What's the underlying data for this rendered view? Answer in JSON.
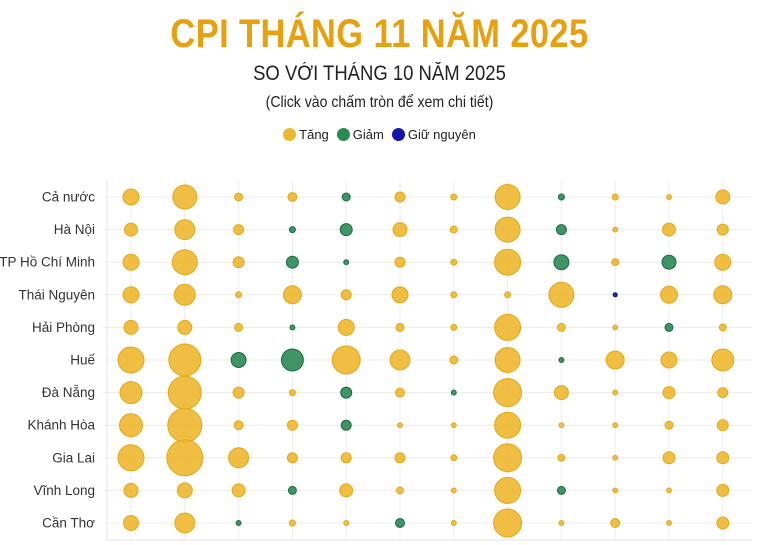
{
  "title": "CPI THÁNG 11 NĂM 2025",
  "subtitle": "SO VỚI THÁNG 10 NĂM 2025",
  "hint": "(Click vào chấm tròn để xem chi tiết)",
  "legend": [
    {
      "label": "Tăng",
      "color": "#EDB72E"
    },
    {
      "label": "Giảm",
      "color": "#2A8A55"
    },
    {
      "label": "Giữ nguyên",
      "color": "#1515A8"
    }
  ],
  "chart_data": {
    "type": "scatter",
    "note_encoding": "bubble area proportional to magnitude (relative, unlabeled); color by status",
    "grid": true,
    "rows": [
      "Cả nước",
      "Hà Nội",
      "TP Hồ Chí Minh",
      "Thái Nguyên",
      "Hải Phòng",
      "Huế",
      "Đà Nẵng",
      "Khánh Hòa",
      "Gia Lai",
      "Vĩnh Long",
      "Cần Thơ"
    ],
    "column_count": 12,
    "status_colors": {
      "u": "#EDB72E",
      "d": "#2A8A55",
      "f": "#1515A8"
    },
    "magnitude": [
      [
        0.64,
        1.44,
        0.16,
        0.2,
        0.16,
        0.25,
        0.09,
        1.56,
        0.09,
        0.09,
        0.06,
        0.49
      ],
      [
        0.42,
        1.0,
        0.25,
        0.09,
        0.36,
        0.49,
        0.12,
        1.56,
        0.25,
        0.06,
        0.42,
        0.3
      ],
      [
        0.64,
        1.56,
        0.3,
        0.36,
        0.06,
        0.25,
        0.09,
        1.69,
        0.56,
        0.12,
        0.49,
        0.64
      ],
      [
        0.64,
        1.1,
        0.09,
        0.81,
        0.25,
        0.64,
        0.09,
        0.09,
        1.56,
        0.04,
        0.72,
        0.81
      ],
      [
        0.49,
        0.49,
        0.16,
        0.06,
        0.64,
        0.16,
        0.09,
        1.69,
        0.16,
        0.06,
        0.16,
        0.12
      ],
      [
        1.69,
        2.56,
        0.56,
        1.21,
        1.96,
        1.0,
        0.16,
        1.56,
        0.06,
        0.81,
        0.64,
        1.21
      ],
      [
        1.21,
        2.72,
        0.3,
        0.09,
        0.3,
        0.2,
        0.06,
        1.96,
        0.49,
        0.06,
        0.36,
        0.25
      ],
      [
        1.32,
        2.89,
        0.2,
        0.25,
        0.25,
        0.06,
        0.06,
        1.69,
        0.06,
        0.06,
        0.16,
        0.3
      ],
      [
        1.69,
        3.24,
        1.0,
        0.25,
        0.25,
        0.25,
        0.09,
        1.96,
        0.12,
        0.06,
        0.36,
        0.36
      ],
      [
        0.49,
        0.56,
        0.42,
        0.16,
        0.42,
        0.12,
        0.06,
        1.69,
        0.16,
        0.06,
        0.06,
        0.36
      ],
      [
        0.56,
        1.0,
        0.06,
        0.09,
        0.06,
        0.2,
        0.06,
        1.96,
        0.06,
        0.2,
        0.06,
        0.36
      ]
    ],
    "status": [
      [
        "u",
        "u",
        "u",
        "u",
        "d",
        "u",
        "u",
        "u",
        "d",
        "u",
        "u",
        "u"
      ],
      [
        "u",
        "u",
        "u",
        "d",
        "d",
        "u",
        "u",
        "u",
        "d",
        "u",
        "u",
        "u"
      ],
      [
        "u",
        "u",
        "u",
        "d",
        "d",
        "u",
        "u",
        "u",
        "d",
        "u",
        "d",
        "u"
      ],
      [
        "u",
        "u",
        "u",
        "u",
        "u",
        "u",
        "u",
        "u",
        "u",
        "f",
        "u",
        "u"
      ],
      [
        "u",
        "u",
        "u",
        "d",
        "u",
        "u",
        "u",
        "u",
        "u",
        "u",
        "d",
        "u"
      ],
      [
        "u",
        "u",
        "d",
        "d",
        "u",
        "u",
        "u",
        "u",
        "d",
        "u",
        "u",
        "u"
      ],
      [
        "u",
        "u",
        "u",
        "u",
        "d",
        "u",
        "d",
        "u",
        "u",
        "u",
        "u",
        "u"
      ],
      [
        "u",
        "u",
        "u",
        "u",
        "d",
        "u",
        "u",
        "u",
        "u",
        "u",
        "u",
        "u"
      ],
      [
        "u",
        "u",
        "u",
        "u",
        "u",
        "u",
        "u",
        "u",
        "u",
        "u",
        "u",
        "u"
      ],
      [
        "u",
        "u",
        "u",
        "d",
        "u",
        "u",
        "u",
        "u",
        "d",
        "u",
        "u",
        "u"
      ],
      [
        "u",
        "u",
        "d",
        "u",
        "u",
        "d",
        "u",
        "u",
        "u",
        "u",
        "u",
        "u"
      ]
    ]
  }
}
